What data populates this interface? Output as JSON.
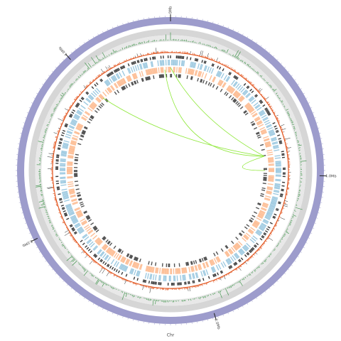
{
  "labels": [
    "0Mb",
    "1.0Mb",
    "2.0Mb",
    "3.0Mb",
    "4.0Mb"
  ],
  "footer": "Chr"
}
